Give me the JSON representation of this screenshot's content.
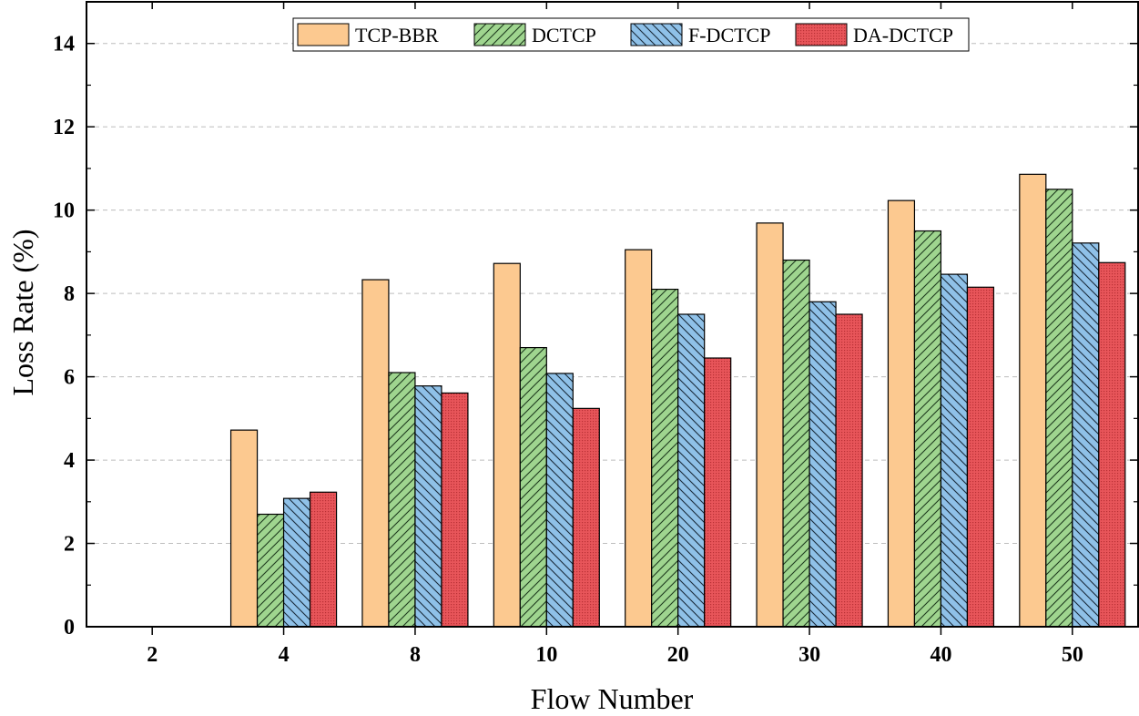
{
  "chart_data": {
    "type": "bar",
    "title": "",
    "xlabel": "Flow Number",
    "ylabel": "Loss Rate (%)",
    "categories": [
      "2",
      "4",
      "8",
      "10",
      "20",
      "30",
      "40",
      "50"
    ],
    "ylim": [
      0,
      15
    ],
    "yticks": [
      "0",
      "2",
      "4",
      "6",
      "8",
      "10",
      "12",
      "14"
    ],
    "grid": true,
    "legend_position": "top",
    "series": [
      {
        "name": "TCP-BBR",
        "color": "#fcc990",
        "pattern": "solid",
        "values": [
          0,
          4.72,
          8.33,
          8.72,
          9.05,
          9.69,
          10.23,
          10.86
        ]
      },
      {
        "name": "DCTCP",
        "color": "#9fd58f",
        "pattern": "forward-hatch",
        "values": [
          0,
          2.7,
          6.1,
          6.7,
          8.1,
          8.8,
          9.5,
          10.5
        ]
      },
      {
        "name": "F-DCTCP",
        "color": "#8fc1e8",
        "pattern": "back-hatch",
        "values": [
          0,
          3.08,
          5.78,
          6.08,
          7.5,
          7.8,
          8.46,
          9.21
        ]
      },
      {
        "name": "DA-DCTCP",
        "color": "#e8555a",
        "pattern": "dots",
        "values": [
          0,
          3.23,
          5.61,
          5.24,
          6.45,
          7.5,
          8.15,
          8.74
        ]
      }
    ]
  }
}
